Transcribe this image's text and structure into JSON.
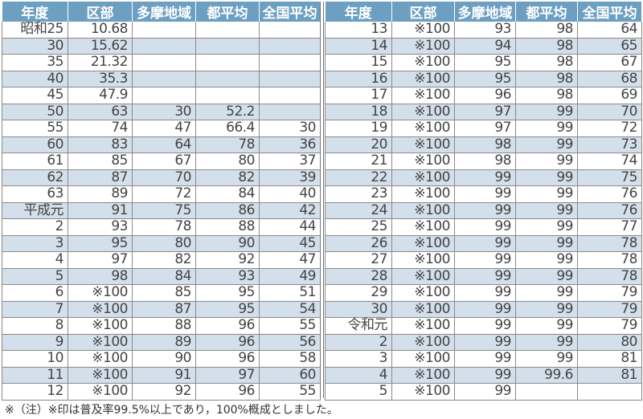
{
  "headers": [
    "年度",
    "区部",
    "多摩地域",
    "都平均",
    "全国平均"
  ],
  "left_rows": [
    [
      "昭和25",
      "10.68",
      "",
      "",
      ""
    ],
    [
      "30",
      "15.62",
      "",
      "",
      ""
    ],
    [
      "35",
      "21.32",
      "",
      "",
      ""
    ],
    [
      "40",
      "35.3",
      "",
      "",
      ""
    ],
    [
      "45",
      "47.9",
      "",
      "",
      ""
    ],
    [
      "50",
      "63",
      "30",
      "52.2",
      ""
    ],
    [
      "55",
      "74",
      "47",
      "66.4",
      "30"
    ],
    [
      "60",
      "83",
      "64",
      "78",
      "36"
    ],
    [
      "61",
      "85",
      "67",
      "80",
      "37"
    ],
    [
      "62",
      "87",
      "70",
      "82",
      "39"
    ],
    [
      "63",
      "89",
      "72",
      "84",
      "40"
    ],
    [
      "平成元",
      "91",
      "75",
      "86",
      "42"
    ],
    [
      "2",
      "93",
      "78",
      "88",
      "44"
    ],
    [
      "3",
      "95",
      "80",
      "90",
      "45"
    ],
    [
      "4",
      "97",
      "82",
      "92",
      "47"
    ],
    [
      "5",
      "98",
      "84",
      "93",
      "49"
    ],
    [
      "6",
      "※100",
      "85",
      "95",
      "51"
    ],
    [
      "7",
      "※100",
      "87",
      "95",
      "54"
    ],
    [
      "8",
      "※100",
      "88",
      "96",
      "55"
    ],
    [
      "9",
      "※100",
      "89",
      "96",
      "56"
    ],
    [
      "10",
      "※100",
      "90",
      "96",
      "58"
    ],
    [
      "11",
      "※100",
      "91",
      "97",
      "60"
    ],
    [
      "12",
      "※100",
      "92",
      "96",
      "55"
    ]
  ],
  "right_rows": [
    [
      "13",
      "※100",
      "93",
      "98",
      "64"
    ],
    [
      "14",
      "※100",
      "94",
      "98",
      "65"
    ],
    [
      "15",
      "※100",
      "95",
      "98",
      "67"
    ],
    [
      "16",
      "※100",
      "95",
      "98",
      "68"
    ],
    [
      "17",
      "※100",
      "96",
      "98",
      "69"
    ],
    [
      "18",
      "※100",
      "97",
      "99",
      "70"
    ],
    [
      "19",
      "※100",
      "97",
      "99",
      "72"
    ],
    [
      "20",
      "※100",
      "98",
      "99",
      "73"
    ],
    [
      "21",
      "※100",
      "98",
      "99",
      "74"
    ],
    [
      "22",
      "※100",
      "99",
      "99",
      "75"
    ],
    [
      "23",
      "※100",
      "99",
      "99",
      "76"
    ],
    [
      "24",
      "※100",
      "99",
      "99",
      "76"
    ],
    [
      "25",
      "※100",
      "99",
      "99",
      "77"
    ],
    [
      "26",
      "※100",
      "99",
      "99",
      "78"
    ],
    [
      "27",
      "※100",
      "99",
      "99",
      "78"
    ],
    [
      "28",
      "※100",
      "99",
      "99",
      "78"
    ],
    [
      "29",
      "※100",
      "99",
      "99",
      "79"
    ],
    [
      "30",
      "※100",
      "99",
      "99",
      "79"
    ],
    [
      "令和元",
      "※100",
      "99",
      "99",
      "79"
    ],
    [
      "2",
      "※100",
      "99",
      "99",
      "80"
    ],
    [
      "3",
      "※100",
      "99",
      "99",
      "81"
    ],
    [
      "4",
      "※100",
      "99",
      "99.6",
      "81"
    ],
    [
      "5",
      "※100",
      "99",
      "",
      ""
    ]
  ],
  "footnote": "※（注）※印は普及率99.5%以上であり，100%概成としました。"
}
